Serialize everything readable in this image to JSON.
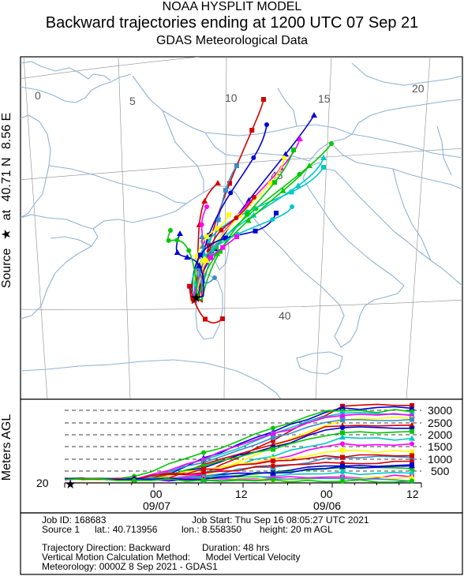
{
  "header": {
    "line1": "NOAA HYSPLIT MODEL",
    "line2": "Backward trajectories ending at 1200 UTC 07 Sep 21",
    "line3": "GDAS Meteorological Data"
  },
  "source_label": {
    "prefix": "Source",
    "at": "at",
    "lat": "40.71 N",
    "lon": "8.56 E"
  },
  "map": {
    "lon_labels": [
      "0",
      "5",
      "10",
      "15",
      "20"
    ],
    "lat_labels": [
      "40",
      "45"
    ],
    "land_color": "#ffffff",
    "coast_color": "#8fb3d4"
  },
  "height_panel": {
    "ylabel": "Meters AGL",
    "level_labels": [
      "3000",
      "2500",
      "2000",
      "1500",
      "1000",
      "500"
    ],
    "start_label": "20",
    "time_ticks": [
      "00",
      "12",
      "00",
      "12"
    ],
    "date_labels": [
      "09/07",
      "09/06"
    ]
  },
  "trajectory_colors": [
    "#d40000",
    "#0000d4",
    "#00c800",
    "#00c8c8",
    "#ff00ff",
    "#ffff00",
    "#3c8cc8"
  ],
  "chart_data": {
    "type": "line",
    "title": "",
    "xlabel": "",
    "ylabel": "Meters AGL",
    "x_ticks": [
      "00 09/07",
      "12",
      "00 09/06",
      "12"
    ],
    "ylim": [
      0,
      3200
    ],
    "series_count": 24,
    "start_height_m": 20,
    "max_height_m": 3100
  },
  "footer": {
    "job_id_label": "Job ID:",
    "job_id": "168683",
    "job_start_label": "Job Start:",
    "job_start": "Thu Sep 16 08:05:27 UTC 2021",
    "source_label": "Source 1",
    "lat_label": "lat.:",
    "lat": "40.713956",
    "lon_label": "lon.:",
    "lon": "8.558350",
    "height_label": "height:",
    "height": "20 m AGL",
    "direction_label": "Trajectory Direction:",
    "direction": "Backward",
    "duration_label": "Duration:",
    "duration": "48 hrs",
    "vertical_label": "Vertical Motion Calculation Method:",
    "vertical": "Model Vertical Velocity",
    "met_label": "Meteorology:",
    "met": "0000Z  8 Sep 2021 - GDAS1"
  }
}
